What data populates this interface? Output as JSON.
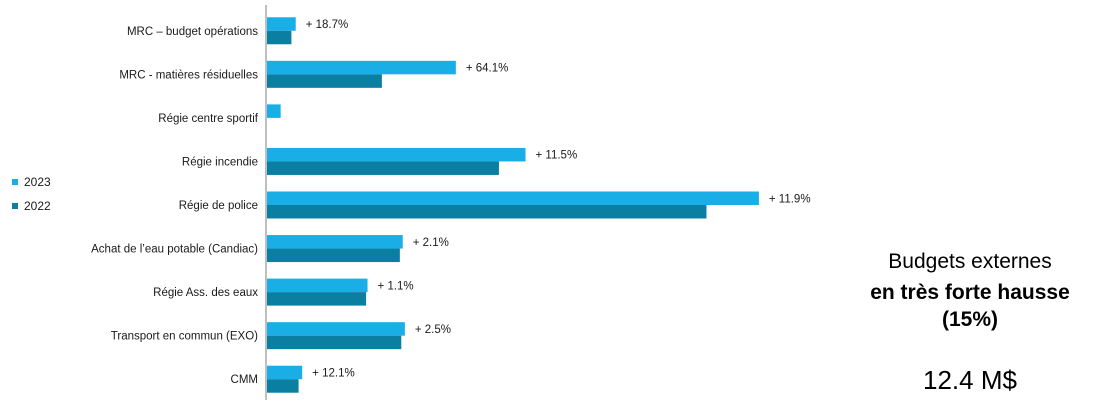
{
  "chart_data": {
    "type": "bar",
    "orientation": "horizontal",
    "categories": [
      "MRC – budget opérations",
      "MRC  - matières résiduelles",
      "Régie centre sportif",
      "Régie incendie",
      "Régie de police",
      "Achat de l’eau potable (Candiac)",
      "Régie Ass. des eaux",
      "Transport en commun (EXO)",
      "CMM"
    ],
    "series": [
      {
        "name": "2023",
        "color": "#1aaee6",
        "values": [
          0.4,
          2.63,
          0.19,
          3.6,
          6.85,
          1.89,
          1.4,
          1.92,
          0.49
        ]
      },
      {
        "name": "2022",
        "color": "#0b7fa2",
        "values": [
          0.34,
          1.6,
          0.0,
          3.23,
          6.12,
          1.85,
          1.38,
          1.87,
          0.44
        ]
      }
    ],
    "data_labels": [
      "+ 18.7%",
      "+ 64.1%",
      "",
      "+ 11.5%",
      "+ 11.9%",
      "+ 2.1%",
      "+ 1.1%",
      "+ 2.5%",
      "+ 12.1%"
    ],
    "xlim": [
      0,
      10.5
    ],
    "legend_position": "left",
    "grid": false
  },
  "side_text": {
    "line1": "Budgets externes",
    "line2": "en très forte hausse",
    "line3": "(15%)",
    "total": "12.4 M$"
  }
}
